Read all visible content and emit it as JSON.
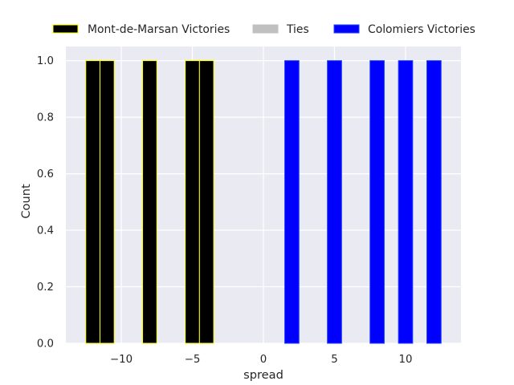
{
  "chart_data": {
    "type": "bar",
    "title": "",
    "xlabel": "spread",
    "ylabel": "Count",
    "xlim": [
      -13.9,
      13.9
    ],
    "ylim": [
      0,
      1.05
    ],
    "xticks": [
      -10,
      -5,
      0,
      5,
      10
    ],
    "xtick_labels": [
      "−10",
      "−5",
      "0",
      "5",
      "10"
    ],
    "yticks": [
      0.0,
      0.2,
      0.4,
      0.6,
      0.8,
      1.0
    ],
    "ytick_labels": [
      "0.0",
      "0.2",
      "0.4",
      "0.6",
      "0.8",
      "1.0"
    ],
    "grid": true,
    "legend_position": "top, above plot",
    "bin_width": 1,
    "series": [
      {
        "name": "Mont-de-Marsan Victories",
        "color": "#000000",
        "edgecolor": "#ffff00",
        "bins": [
          {
            "x": -12,
            "count": 1
          },
          {
            "x": -11,
            "count": 1
          },
          {
            "x": -8,
            "count": 1
          },
          {
            "x": -5,
            "count": 1
          },
          {
            "x": -4,
            "count": 1
          }
        ]
      },
      {
        "name": "Ties",
        "color": "#c0c0c0",
        "edgecolor": "#c0c0c0",
        "bins": []
      },
      {
        "name": "Colomiers Victories",
        "color": "#0000ff",
        "edgecolor": "#1f3fff",
        "bins": [
          {
            "x": 2,
            "count": 1
          },
          {
            "x": 5,
            "count": 1
          },
          {
            "x": 8,
            "count": 1
          },
          {
            "x": 10,
            "count": 1
          },
          {
            "x": 12,
            "count": 1
          }
        ]
      }
    ]
  }
}
